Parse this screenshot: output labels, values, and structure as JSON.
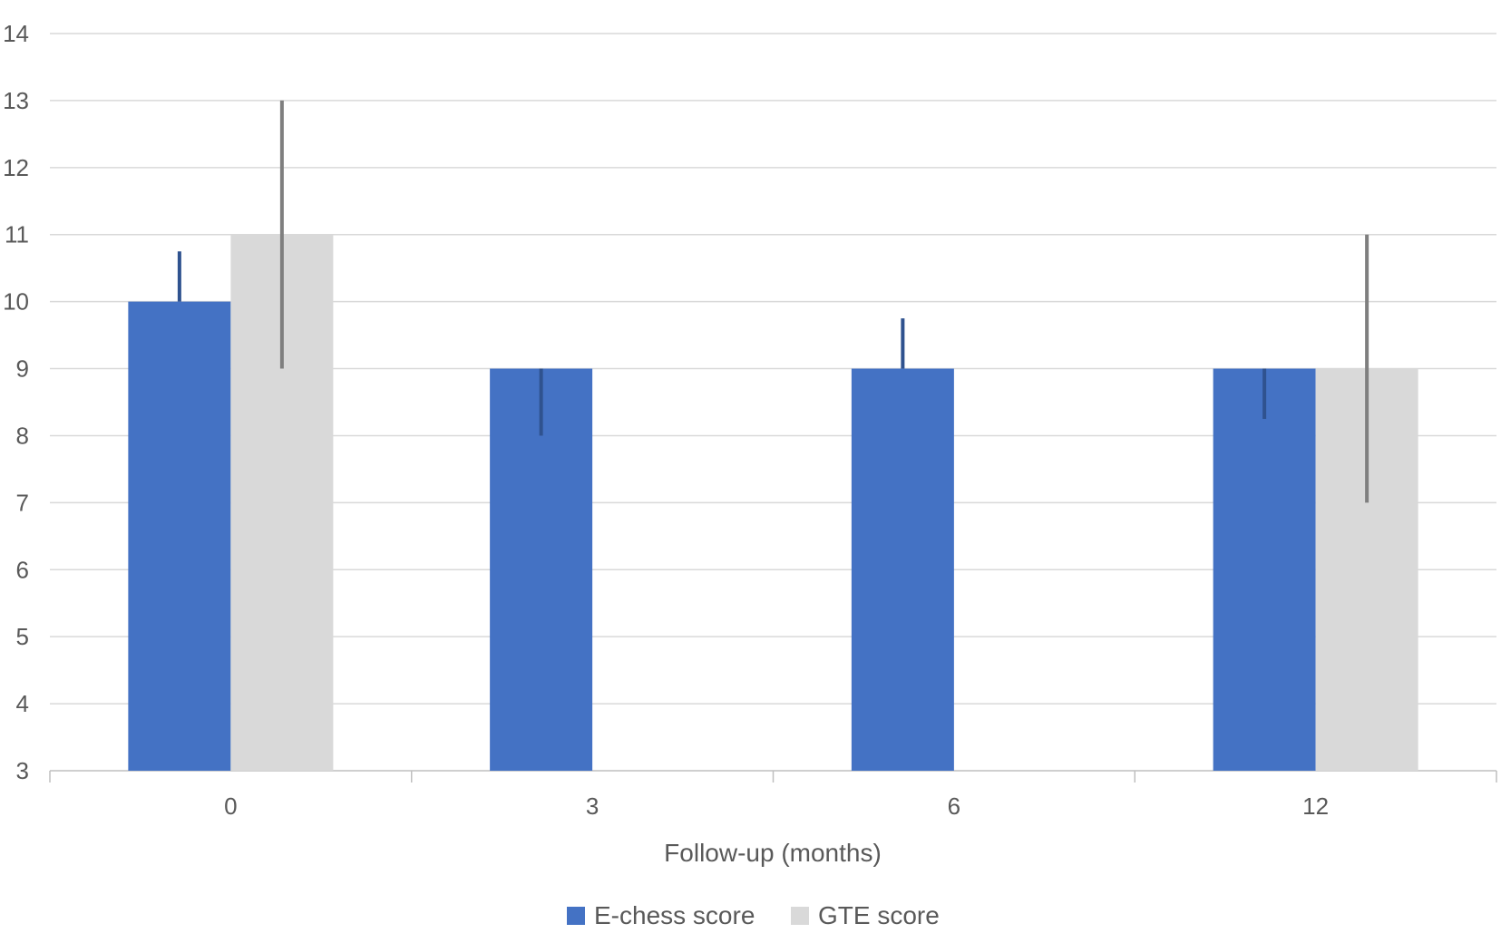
{
  "chart_data": {
    "type": "bar",
    "title": "",
    "xlabel": "Follow-up (months)",
    "ylabel": "",
    "categories": [
      "0",
      "3",
      "6",
      "12"
    ],
    "ylim": [
      3,
      14
    ],
    "yticks": [
      "3",
      "4",
      "5",
      "6",
      "7",
      "8",
      "9",
      "10",
      "11",
      "12",
      "13",
      "14"
    ],
    "grid": true,
    "legend_position": "bottom",
    "series": [
      {
        "name": "E-chess score",
        "color": "#4472C4",
        "error_color": "#2F528F",
        "values": [
          10,
          9,
          9,
          9
        ],
        "error_low": [
          10,
          8,
          9,
          8.25
        ],
        "error_high": [
          10.75,
          9,
          9.75,
          9
        ]
      },
      {
        "name": "GTE score",
        "color": "#D9D9D9",
        "error_color": "#7F7F7F",
        "values": [
          11,
          null,
          null,
          9
        ],
        "error_low": [
          9,
          null,
          null,
          7
        ],
        "error_high": [
          13,
          null,
          null,
          11
        ]
      }
    ]
  }
}
